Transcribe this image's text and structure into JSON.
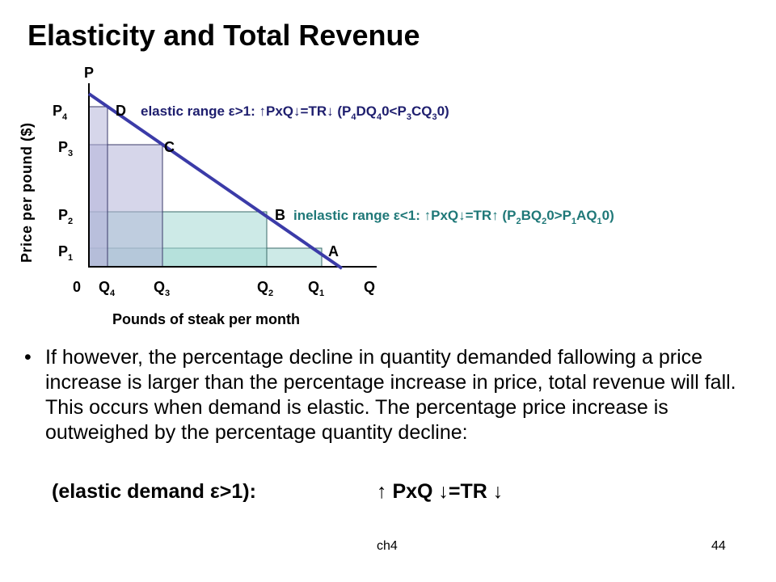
{
  "slide": {
    "title": "Elasticity and Total Revenue",
    "footer_left": "ch4",
    "page_number": "44"
  },
  "diagram": {
    "y_axis_title": "Price per pound ($)",
    "x_axis_title": "Pounds of steak per month",
    "axis_p": "P",
    "axis_q": "Q",
    "origin": "0",
    "price_labels": [
      {
        "base": "P",
        "sub": "4"
      },
      {
        "base": "P",
        "sub": "3"
      },
      {
        "base": "P",
        "sub": "2"
      },
      {
        "base": "P",
        "sub": "1"
      }
    ],
    "quantity_labels": [
      {
        "base": "Q",
        "sub": "4"
      },
      {
        "base": "Q",
        "sub": "3"
      },
      {
        "base": "Q",
        "sub": "2"
      },
      {
        "base": "Q",
        "sub": "1"
      }
    ],
    "point_labels": [
      "D",
      "C",
      "B",
      "A"
    ],
    "elastic_note": {
      "text": "elastic range ε>1: ↑PxQ↓=TR↓ (P",
      "s1": "4",
      "t1": "DQ",
      "s2": "4",
      "t2": "0<P",
      "s3": "3",
      "t3": "CQ",
      "s4": "3",
      "t4": "0)"
    },
    "inelastic_note": {
      "text": "inelastic range ε<1: ↑PxQ↓=TR↑ (P",
      "s1": "2",
      "t1": "BQ",
      "s2": "2",
      "t2": "0>P",
      "s3": "1",
      "t3": "AQ",
      "s4": "1",
      "t4": "0)"
    },
    "colors": {
      "demand_line": "#3b3ba8",
      "rect_p4": "#b4b4d8",
      "rect_p3": "#b4b4d8",
      "rect_p2": "#a4d8d4",
      "rect_p1": "#a4d8d4",
      "note_inelastic": "#1f7878"
    }
  },
  "body": {
    "bullet": "If however, the percentage decline in quantity demanded fallowing a price increase is larger than the percentage increase in price, total revenue will fall. This occurs when demand is elastic. The percentage price increase is outweighed by the percentage quantity decline:",
    "formula_label": "(elastic demand ε>1):",
    "formula_arrows": "↑ PxQ ↓=TR ↓"
  }
}
